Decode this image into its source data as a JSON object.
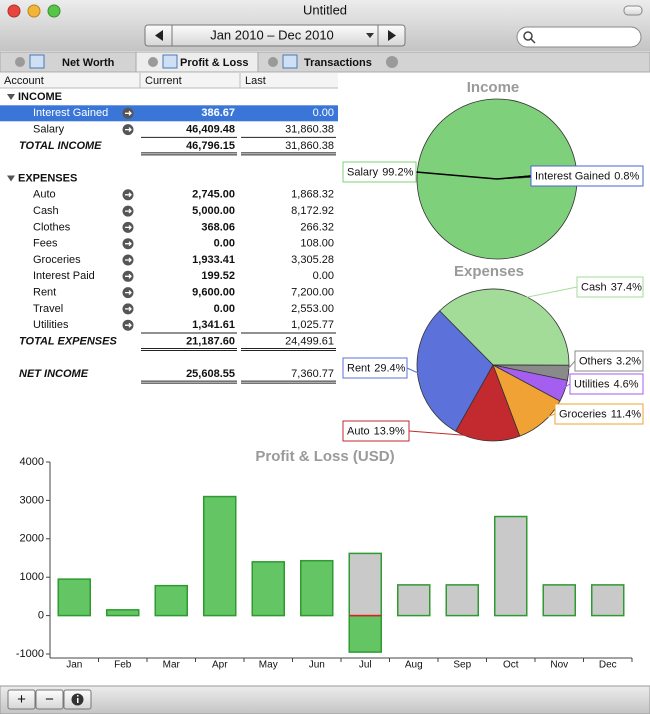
{
  "window": {
    "title": "Untitled",
    "date_range": "Jan 2010 – Dec 2010",
    "tabs": [
      "Net Worth",
      "Profit & Loss",
      "Transactions"
    ],
    "buttons": [
      "+",
      "−"
    ]
  },
  "table": {
    "headers": [
      "Account",
      "Current",
      "Last"
    ],
    "sections": [
      {
        "title": "INCOME",
        "rows": [
          [
            "Interest Gained",
            "386.67",
            "0.00"
          ],
          [
            "Salary",
            "46,409.48",
            "31,860.38"
          ]
        ],
        "total": [
          "TOTAL INCOME",
          "46,796.15",
          "31,860.38"
        ]
      },
      {
        "title": "EXPENSES",
        "rows": [
          [
            "Auto",
            "2,745.00",
            "1,868.32"
          ],
          [
            "Cash",
            "5,000.00",
            "8,172.92"
          ],
          [
            "Clothes",
            "368.06",
            "266.32"
          ],
          [
            "Fees",
            "0.00",
            "108.00"
          ],
          [
            "Groceries",
            "1,933.41",
            "3,305.28"
          ],
          [
            "Interest Paid",
            "199.52",
            "0.00"
          ],
          [
            "Rent",
            "9,600.00",
            "7,200.00"
          ],
          [
            "Travel",
            "0.00",
            "2,553.00"
          ],
          [
            "Utilities",
            "1,341.61",
            "1,025.77"
          ]
        ],
        "total": [
          "TOTAL EXPENSES",
          "21,187.60",
          "24,499.61"
        ]
      }
    ],
    "net": [
      "NET INCOME",
      "25,608.55",
      "7,360.77"
    ]
  },
  "chart_data": [
    {
      "type": "pie",
      "title": "Income",
      "categories": [
        "Salary",
        "Interest Gained"
      ],
      "values": [
        99.2,
        0.8
      ],
      "value_labels": [
        "99.2%",
        "0.8%"
      ],
      "colors": [
        "#7fd07a",
        "#4a64d0"
      ]
    },
    {
      "type": "pie",
      "title": "Expenses",
      "categories": [
        "Cash",
        "Others",
        "Utilities",
        "Groceries",
        "Auto",
        "Rent"
      ],
      "values": [
        37.4,
        3.2,
        4.6,
        11.4,
        13.9,
        29.4
      ],
      "value_labels": [
        "37.4%",
        "3.2%",
        "4.6%",
        "11.4%",
        "13.9%",
        "29.4%"
      ],
      "colors": [
        "#a3dc98",
        "#8a8a8a",
        "#a45ef0",
        "#f0a234",
        "#c22a30",
        "#5c72da"
      ]
    },
    {
      "type": "bar",
      "title": "Profit & Loss (USD)",
      "categories": [
        "Jan",
        "Feb",
        "Mar",
        "Apr",
        "May",
        "Jun",
        "Jul",
        "Aug",
        "Sep",
        "Oct",
        "Nov",
        "Dec"
      ],
      "series": [
        {
          "color": "#63c563",
          "values": [
            950,
            150,
            780,
            3100,
            1400,
            1430,
            -950,
            null,
            null,
            null,
            null,
            null
          ]
        },
        {
          "color": "#c9c9c9",
          "values": [
            null,
            null,
            null,
            null,
            null,
            null,
            1620,
            800,
            800,
            2580,
            800,
            800
          ]
        }
      ],
      "ylim": [
        -1000,
        4000
      ],
      "yticks": [
        -1000,
        0,
        1000,
        2000,
        3000,
        4000
      ]
    }
  ]
}
